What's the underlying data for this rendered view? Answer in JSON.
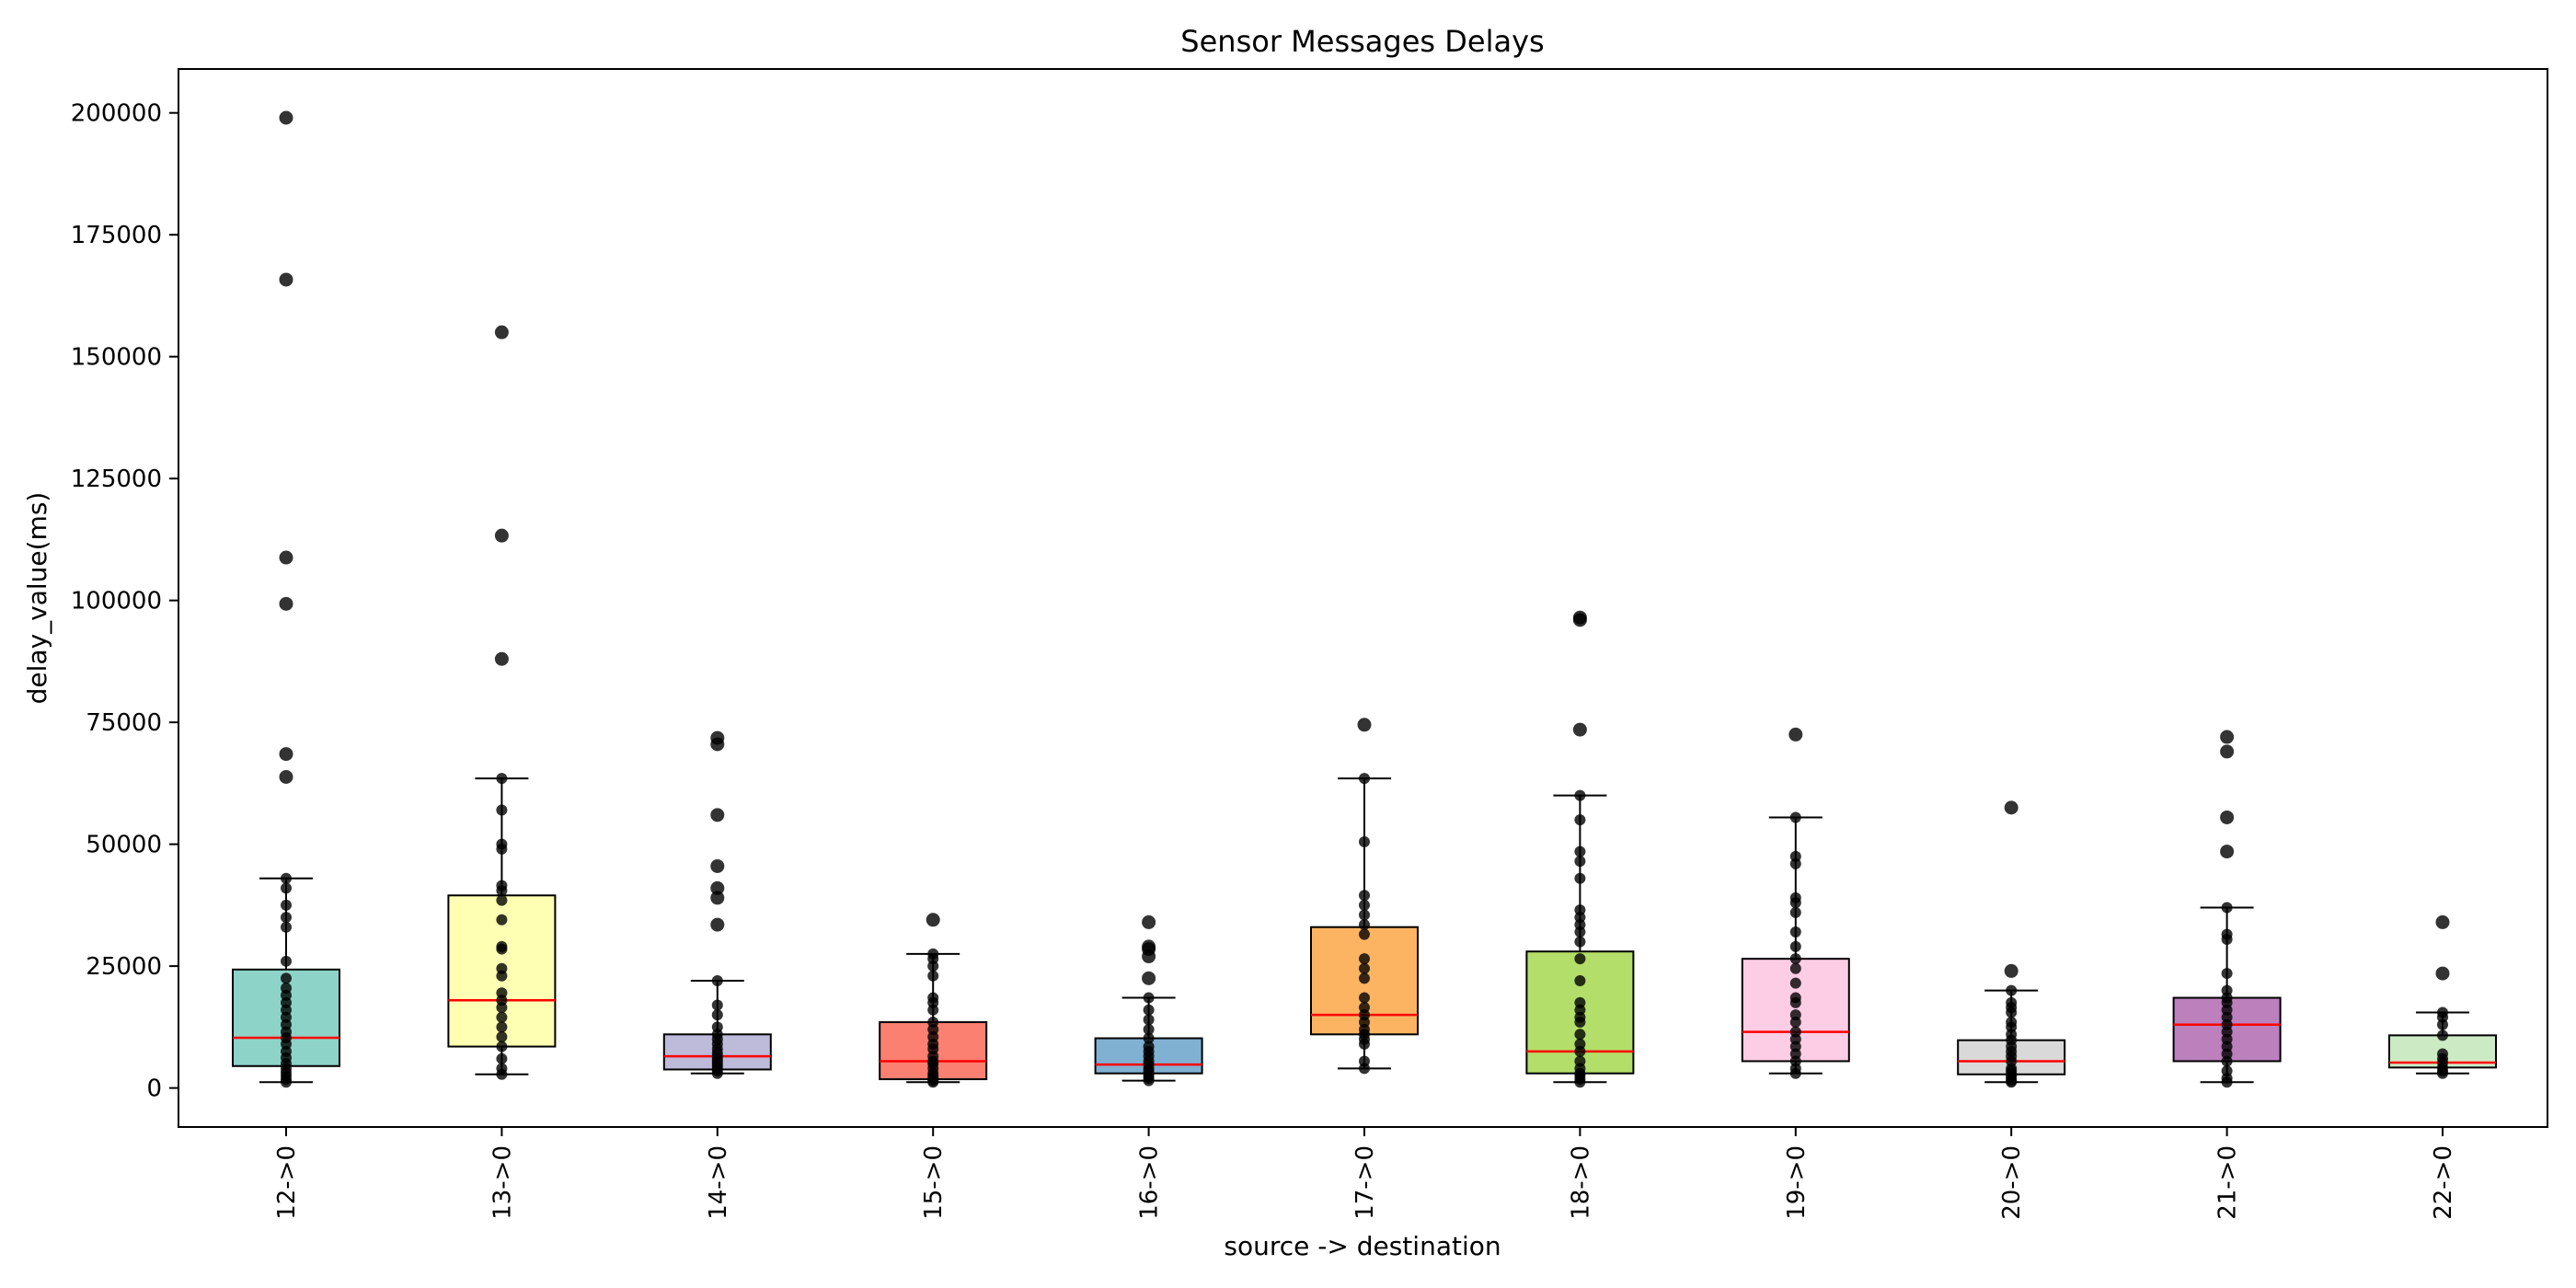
{
  "chart_data": {
    "type": "box",
    "title": "Sensor Messages Delays",
    "xlabel": "source -> destination",
    "ylabel": "delay_value(ms)",
    "ylim": [
      -8000,
      209000
    ],
    "yticks": [
      0,
      25000,
      50000,
      75000,
      100000,
      125000,
      150000,
      175000,
      200000
    ],
    "grid": false,
    "median_color": "#ff0000",
    "point_color": "#000000",
    "categories": [
      "12->0",
      "13->0",
      "14->0",
      "15->0",
      "16->0",
      "17->0",
      "18->0",
      "19->0",
      "20->0",
      "21->0",
      "22->0"
    ],
    "boxes": [
      {
        "category": "12->0",
        "color": "#8dd3c7",
        "whisker_low": 1200,
        "q1": 4500,
        "median": 10300,
        "q3": 24300,
        "whisker_high": 43000,
        "points": [
          1200,
          1800,
          2500,
          3200,
          4000,
          5000,
          6200,
          7500,
          9000,
          10300,
          11500,
          13000,
          14500,
          16000,
          17500,
          19000,
          20500,
          22500,
          26000,
          33000,
          35000,
          37500,
          41000,
          43000,
          63800,
          68500,
          99300,
          108800,
          165800,
          199000
        ]
      },
      {
        "category": "13->0",
        "color": "#ffffb3",
        "whisker_low": 2800,
        "q1": 8500,
        "median": 18000,
        "q3": 39500,
        "whisker_high": 63500,
        "points": [
          2800,
          4000,
          6000,
          8500,
          10500,
          12500,
          14500,
          16500,
          18000,
          19500,
          23000,
          24500,
          28500,
          29000,
          34500,
          38500,
          40500,
          41500,
          49000,
          50000,
          57000,
          63500,
          88000,
          113300,
          155000
        ]
      },
      {
        "category": "14->0",
        "color": "#bebada",
        "whisker_low": 3000,
        "q1": 3800,
        "median": 6500,
        "q3": 11000,
        "whisker_high": 22000,
        "points": [
          3000,
          3500,
          4000,
          4500,
          5000,
          5500,
          6000,
          6500,
          7200,
          8000,
          9000,
          10000,
          11000,
          12500,
          15000,
          17000,
          22000,
          33500,
          39000,
          41000,
          45500,
          56000,
          70500,
          71800
        ]
      },
      {
        "category": "15->0",
        "color": "#fb8072",
        "whisker_low": 1200,
        "q1": 1800,
        "median": 5500,
        "q3": 13500,
        "whisker_high": 27500,
        "points": [
          1200,
          1500,
          2000,
          2500,
          3000,
          4000,
          5000,
          5500,
          6500,
          8000,
          9000,
          10500,
          12000,
          13500,
          16000,
          17500,
          18500,
          23000,
          25000,
          26500,
          27500,
          34500
        ]
      },
      {
        "category": "16->0",
        "color": "#80b1d3",
        "whisker_low": 1500,
        "q1": 3000,
        "median": 4800,
        "q3": 10200,
        "whisker_high": 18500,
        "points": [
          1500,
          2000,
          2500,
          3000,
          3500,
          4000,
          4800,
          5500,
          6500,
          7500,
          8500,
          10200,
          12000,
          14000,
          16000,
          18500,
          22500,
          27000,
          28500,
          29000,
          34000
        ]
      },
      {
        "category": "17->0",
        "color": "#fdb462",
        "whisker_low": 4000,
        "q1": 11000,
        "median": 15000,
        "q3": 33000,
        "whisker_high": 63500,
        "points": [
          4000,
          5500,
          9000,
          10000,
          11000,
          12000,
          13500,
          15000,
          16500,
          18500,
          22500,
          24500,
          26500,
          31500,
          33500,
          35500,
          37500,
          39500,
          50500,
          63500,
          74500
        ]
      },
      {
        "category": "18->0",
        "color": "#b3de69",
        "whisker_low": 1200,
        "q1": 3000,
        "median": 7500,
        "q3": 28000,
        "whisker_high": 60000,
        "points": [
          1200,
          1800,
          2500,
          3000,
          4000,
          5500,
          7500,
          9000,
          11000,
          13500,
          14500,
          16000,
          17500,
          22000,
          26500,
          30000,
          32000,
          33500,
          35000,
          36500,
          43000,
          46500,
          48500,
          55000,
          60000,
          73500,
          96000,
          96500
        ]
      },
      {
        "category": "19->0",
        "color": "#fccde5",
        "whisker_low": 3000,
        "q1": 5500,
        "median": 11500,
        "q3": 26500,
        "whisker_high": 55500,
        "points": [
          3000,
          4000,
          5500,
          7000,
          8500,
          10000,
          11500,
          13500,
          15000,
          17500,
          18500,
          21500,
          24500,
          26500,
          29000,
          32000,
          36000,
          38000,
          39000,
          46000,
          47500,
          55500,
          72500
        ]
      },
      {
        "category": "20->0",
        "color": "#d9d9d9",
        "whisker_low": 1200,
        "q1": 2800,
        "median": 5500,
        "q3": 9800,
        "whisker_high": 20000,
        "points": [
          1200,
          1500,
          2000,
          2500,
          3000,
          3500,
          4000,
          5500,
          6500,
          7500,
          8500,
          9800,
          11000,
          12500,
          13500,
          15500,
          16500,
          17500,
          20000,
          24000,
          57500
        ]
      },
      {
        "category": "21->0",
        "color": "#bc80bd",
        "whisker_low": 1200,
        "q1": 5500,
        "median": 13000,
        "q3": 18500,
        "whisker_high": 37000,
        "points": [
          1200,
          2000,
          3500,
          5500,
          7000,
          8500,
          10000,
          11500,
          13000,
          14500,
          16000,
          17500,
          18500,
          20000,
          23500,
          30500,
          31500,
          37000,
          48500,
          55500,
          69000,
          72000
        ]
      },
      {
        "category": "22->0",
        "color": "#ccebc5",
        "whisker_low": 3000,
        "q1": 4200,
        "median": 5200,
        "q3": 10800,
        "whisker_high": 15500,
        "points": [
          3000,
          3500,
          4200,
          5200,
          6000,
          7000,
          10800,
          13000,
          14500,
          15500,
          23500,
          34000
        ]
      }
    ]
  }
}
